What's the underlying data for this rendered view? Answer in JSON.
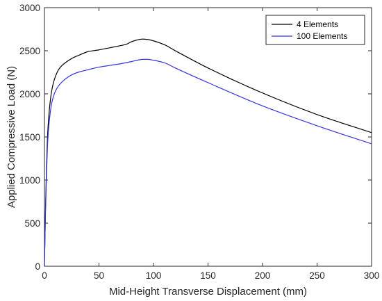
{
  "chart_data": {
    "type": "line",
    "xlabel": "Mid-Height Transverse Displacement (mm)",
    "ylabel": "Applied Compressive Load (N)",
    "xlim": [
      0,
      300
    ],
    "ylim": [
      0,
      3000
    ],
    "xticks": [
      0,
      50,
      100,
      150,
      200,
      250,
      300
    ],
    "yticks": [
      0,
      500,
      1000,
      1500,
      2000,
      2500,
      3000
    ],
    "grid": false,
    "legend_position": "top-right",
    "series": [
      {
        "name": "4 Elements",
        "color": "#000000",
        "x": [
          0,
          1,
          2,
          3,
          5,
          7,
          10,
          14,
          18,
          25,
          32,
          40,
          50,
          60,
          70,
          75,
          80,
          85,
          90,
          95,
          100,
          110,
          120,
          150,
          200,
          250,
          300
        ],
        "y": [
          0,
          700,
          1200,
          1550,
          1880,
          2060,
          2200,
          2300,
          2350,
          2410,
          2450,
          2490,
          2510,
          2535,
          2560,
          2575,
          2605,
          2625,
          2635,
          2630,
          2615,
          2570,
          2500,
          2300,
          2010,
          1760,
          1550
        ]
      },
      {
        "name": "100 Elements",
        "color": "#3333dd",
        "x": [
          0,
          1,
          2,
          3,
          5,
          7,
          10,
          14,
          18,
          25,
          32,
          40,
          50,
          60,
          70,
          80,
          85,
          90,
          95,
          100,
          110,
          120,
          150,
          200,
          250,
          300
        ],
        "y": [
          0,
          650,
          1100,
          1450,
          1750,
          1910,
          2030,
          2110,
          2160,
          2220,
          2255,
          2280,
          2310,
          2330,
          2350,
          2375,
          2390,
          2400,
          2400,
          2390,
          2360,
          2300,
          2130,
          1860,
          1630,
          1420
        ]
      }
    ]
  }
}
